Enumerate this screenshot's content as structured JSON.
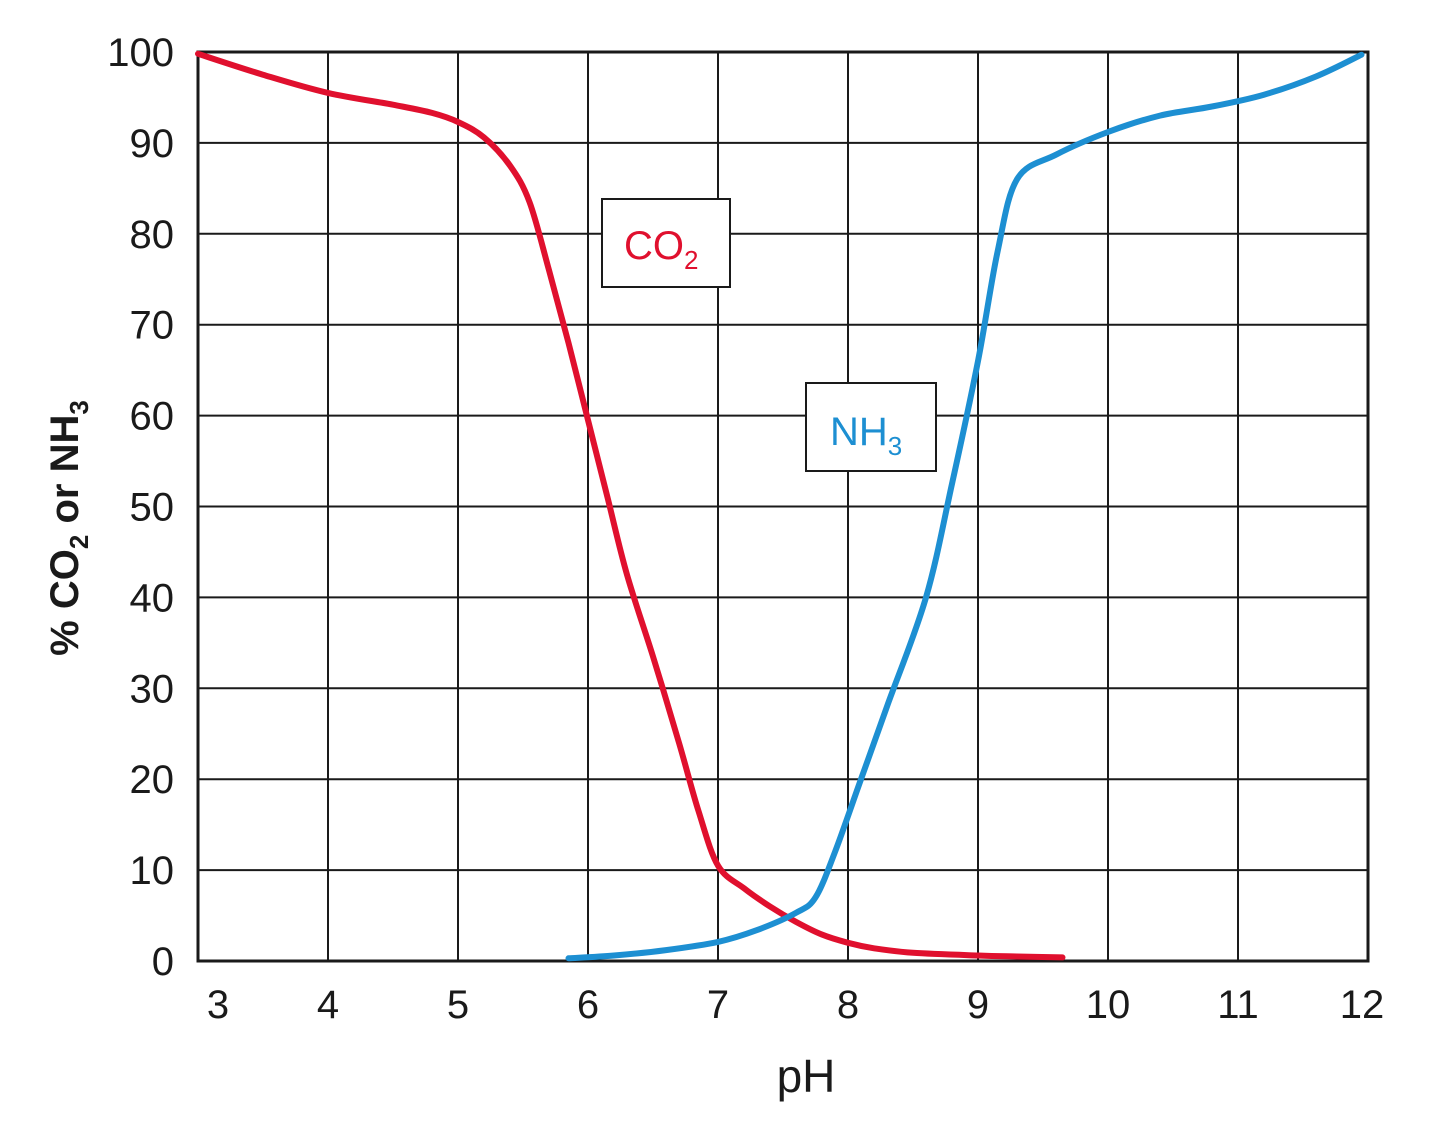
{
  "chart_data": {
    "type": "line",
    "title": "",
    "xlabel": "pH",
    "ylabel": {
      "main": "% CO",
      "sub1": "2",
      "mid": " or NH",
      "sub2": "3"
    },
    "xlim": [
      3,
      12
    ],
    "ylim": [
      0,
      100
    ],
    "xticks": [
      3,
      4,
      5,
      6,
      7,
      8,
      9,
      10,
      11,
      12
    ],
    "yticks": [
      0,
      10,
      20,
      30,
      40,
      50,
      60,
      70,
      80,
      90,
      100
    ],
    "grid": true,
    "legend": "none",
    "series": [
      {
        "name": "CO2",
        "label_main": "CO",
        "label_sub": "2",
        "color": "#e0102e",
        "x": [
          3.0,
          3.5,
          4.0,
          4.5,
          4.8,
          5.0,
          5.2,
          5.4,
          5.55,
          5.7,
          5.85,
          6.0,
          6.15,
          6.3,
          6.5,
          6.7,
          6.85,
          7.0,
          7.2,
          7.4,
          7.6,
          7.8,
          8.0,
          8.2,
          8.5,
          9.0,
          9.3,
          9.65
        ],
        "y": [
          99.8,
          97.5,
          95.5,
          94.2,
          93.3,
          92.3,
          90.6,
          87.5,
          83.5,
          76,
          68,
          59.5,
          51,
          42.5,
          33.5,
          24,
          16.5,
          10.5,
          8,
          6,
          4.3,
          2.9,
          2,
          1.4,
          0.9,
          0.6,
          0.5,
          0.4
        ]
      },
      {
        "name": "NH3",
        "label_main": "NH",
        "label_sub": "3",
        "color": "#1d8fd2",
        "x": [
          5.85,
          6.2,
          6.6,
          7.0,
          7.3,
          7.6,
          7.75,
          7.9,
          8.1,
          8.3,
          8.6,
          8.8,
          9.0,
          9.15,
          9.3,
          9.6,
          10.0,
          10.4,
          10.8,
          11.2,
          11.6,
          11.95
        ],
        "y": [
          0.3,
          0.6,
          1.2,
          2.1,
          3.4,
          5.3,
          7,
          12,
          20,
          28,
          40,
          52.5,
          66,
          78,
          86,
          88.7,
          91.2,
          93,
          94,
          95.3,
          97.3,
          99.7
        ]
      }
    ]
  }
}
